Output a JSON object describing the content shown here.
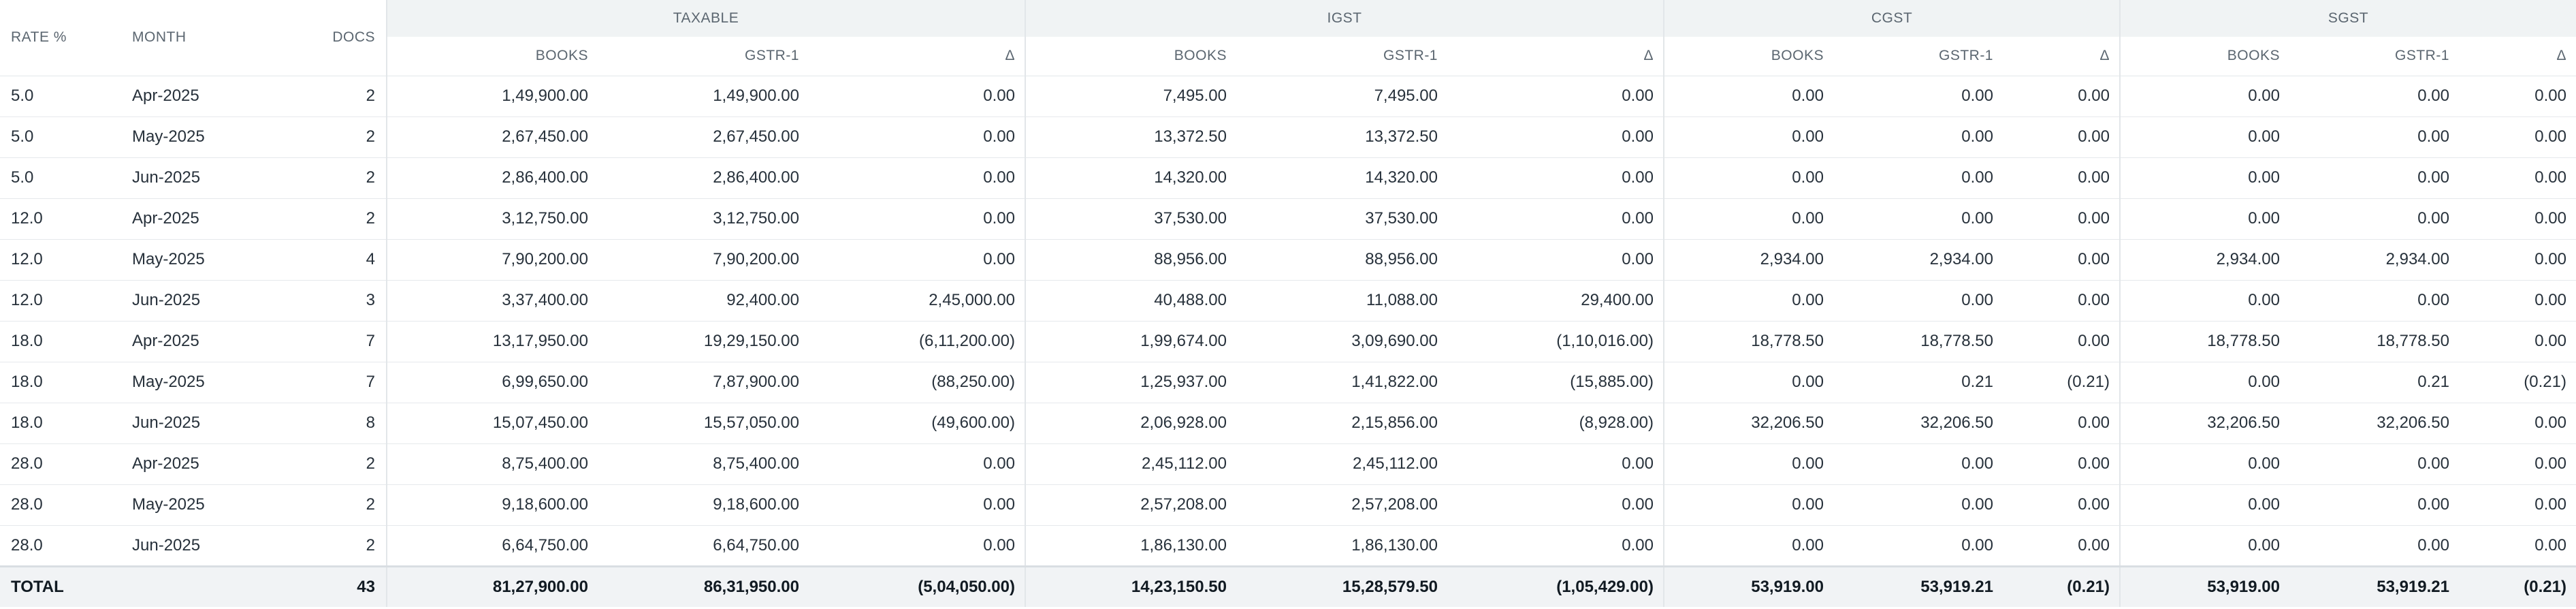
{
  "headers": {
    "rate": "RATE %",
    "month": "MONTH",
    "docs": "DOCS",
    "groups": [
      "TAXABLE",
      "IGST",
      "CGST",
      "SGST"
    ],
    "sub": [
      "BOOKS",
      "GSTR-1",
      "Δ"
    ]
  },
  "rows": [
    {
      "rate": "5.0",
      "month": "Apr-2025",
      "docs": "2",
      "vals": [
        "1,49,900.00",
        "1,49,900.00",
        "0.00",
        "7,495.00",
        "7,495.00",
        "0.00",
        "0.00",
        "0.00",
        "0.00",
        "0.00",
        "0.00",
        "0.00"
      ]
    },
    {
      "rate": "5.0",
      "month": "May-2025",
      "docs": "2",
      "vals": [
        "2,67,450.00",
        "2,67,450.00",
        "0.00",
        "13,372.50",
        "13,372.50",
        "0.00",
        "0.00",
        "0.00",
        "0.00",
        "0.00",
        "0.00",
        "0.00"
      ]
    },
    {
      "rate": "5.0",
      "month": "Jun-2025",
      "docs": "2",
      "vals": [
        "2,86,400.00",
        "2,86,400.00",
        "0.00",
        "14,320.00",
        "14,320.00",
        "0.00",
        "0.00",
        "0.00",
        "0.00",
        "0.00",
        "0.00",
        "0.00"
      ]
    },
    {
      "rate": "12.0",
      "month": "Apr-2025",
      "docs": "2",
      "vals": [
        "3,12,750.00",
        "3,12,750.00",
        "0.00",
        "37,530.00",
        "37,530.00",
        "0.00",
        "0.00",
        "0.00",
        "0.00",
        "0.00",
        "0.00",
        "0.00"
      ]
    },
    {
      "rate": "12.0",
      "month": "May-2025",
      "docs": "4",
      "vals": [
        "7,90,200.00",
        "7,90,200.00",
        "0.00",
        "88,956.00",
        "88,956.00",
        "0.00",
        "2,934.00",
        "2,934.00",
        "0.00",
        "2,934.00",
        "2,934.00",
        "0.00"
      ]
    },
    {
      "rate": "12.0",
      "month": "Jun-2025",
      "docs": "3",
      "vals": [
        "3,37,400.00",
        "92,400.00",
        "2,45,000.00",
        "40,488.00",
        "11,088.00",
        "29,400.00",
        "0.00",
        "0.00",
        "0.00",
        "0.00",
        "0.00",
        "0.00"
      ]
    },
    {
      "rate": "18.0",
      "month": "Apr-2025",
      "docs": "7",
      "vals": [
        "13,17,950.00",
        "19,29,150.00",
        "(6,11,200.00)",
        "1,99,674.00",
        "3,09,690.00",
        "(1,10,016.00)",
        "18,778.50",
        "18,778.50",
        "0.00",
        "18,778.50",
        "18,778.50",
        "0.00"
      ]
    },
    {
      "rate": "18.0",
      "month": "May-2025",
      "docs": "7",
      "vals": [
        "6,99,650.00",
        "7,87,900.00",
        "(88,250.00)",
        "1,25,937.00",
        "1,41,822.00",
        "(15,885.00)",
        "0.00",
        "0.21",
        "(0.21)",
        "0.00",
        "0.21",
        "(0.21)"
      ]
    },
    {
      "rate": "18.0",
      "month": "Jun-2025",
      "docs": "8",
      "vals": [
        "15,07,450.00",
        "15,57,050.00",
        "(49,600.00)",
        "2,06,928.00",
        "2,15,856.00",
        "(8,928.00)",
        "32,206.50",
        "32,206.50",
        "0.00",
        "32,206.50",
        "32,206.50",
        "0.00"
      ]
    },
    {
      "rate": "28.0",
      "month": "Apr-2025",
      "docs": "2",
      "vals": [
        "8,75,400.00",
        "8,75,400.00",
        "0.00",
        "2,45,112.00",
        "2,45,112.00",
        "0.00",
        "0.00",
        "0.00",
        "0.00",
        "0.00",
        "0.00",
        "0.00"
      ]
    },
    {
      "rate": "28.0",
      "month": "May-2025",
      "docs": "2",
      "vals": [
        "9,18,600.00",
        "9,18,600.00",
        "0.00",
        "2,57,208.00",
        "2,57,208.00",
        "0.00",
        "0.00",
        "0.00",
        "0.00",
        "0.00",
        "0.00",
        "0.00"
      ]
    },
    {
      "rate": "28.0",
      "month": "Jun-2025",
      "docs": "2",
      "vals": [
        "6,64,750.00",
        "6,64,750.00",
        "0.00",
        "1,86,130.00",
        "1,86,130.00",
        "0.00",
        "0.00",
        "0.00",
        "0.00",
        "0.00",
        "0.00",
        "0.00"
      ]
    }
  ],
  "total": {
    "label": "TOTAL",
    "docs": "43",
    "vals": [
      "81,27,900.00",
      "86,31,950.00",
      "(5,04,050.00)",
      "14,23,150.50",
      "15,28,579.50",
      "(1,05,429.00)",
      "53,919.00",
      "53,919.21",
      "(0.21)",
      "53,919.00",
      "53,919.21",
      "(0.21)"
    ]
  }
}
